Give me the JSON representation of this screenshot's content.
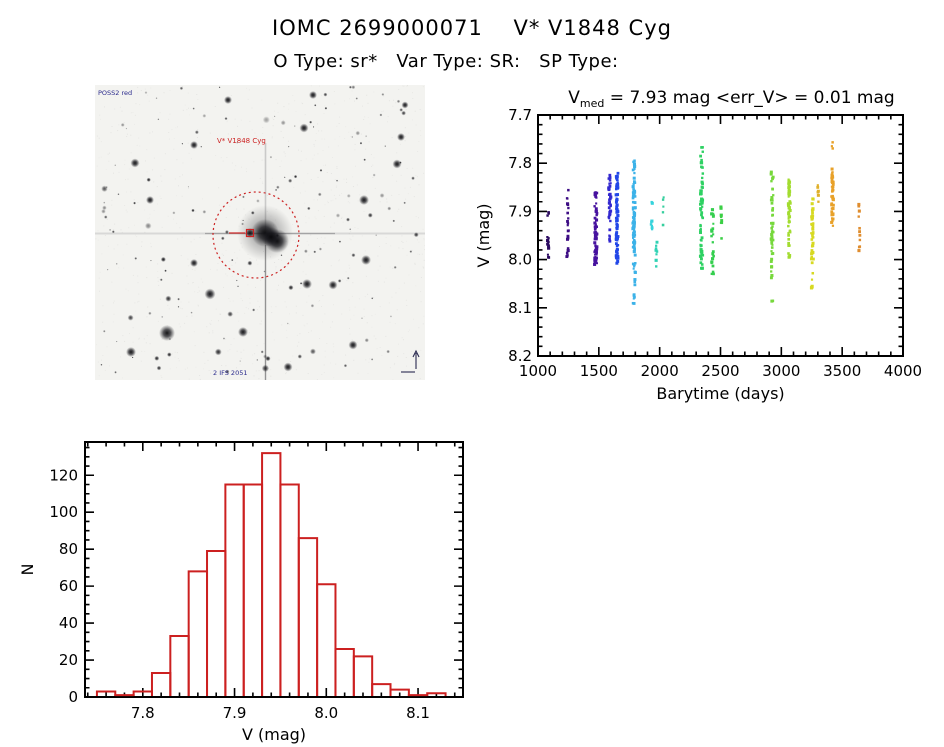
{
  "page": {
    "title": "IOMC 2699000071    V* V1848 Cyg",
    "subtitle": "O Type: sr*   Var Type: SR:   SP Type:",
    "background": "#ffffff",
    "text_color": "#000000"
  },
  "finder": {
    "survey_label": "POSS2 red",
    "target_label": "V* V1848 Cyg",
    "bottom_label": "2 IFS 2051",
    "marker_color": "#cc2222",
    "annotation_color": "#2a2a8c"
  },
  "chart_data": [
    {
      "id": "lightcurve",
      "type": "scatter",
      "title_parts": {
        "base": "V",
        "sub": "med",
        "rest": " = 7.93 mag <err_V> = 0.01 mag"
      },
      "xlabel": "Barytime (days)",
      "ylabel": "V (mag)",
      "xlim": [
        1000,
        4000
      ],
      "ylim": [
        7.7,
        8.2
      ],
      "y_inverted": true,
      "xticks": [
        1000,
        1500,
        2000,
        2500,
        3000,
        3500,
        4000
      ],
      "yticks": [
        7.7,
        7.8,
        7.9,
        8.0,
        8.1,
        8.2
      ],
      "x_minor_step": 100,
      "y_minor_step": 0.02,
      "xtick_decimals": 0,
      "ytick_decimals": 1,
      "clusters": [
        {
          "t": 1085,
          "t_spread": 8,
          "color": "#2b0a60",
          "segments": [
            [
              7.9,
              8.0,
              14
            ]
          ]
        },
        {
          "t": 1245,
          "t_spread": 8,
          "color": "#3d0d84",
          "segments": [
            [
              7.85,
              7.92,
              8
            ],
            [
              7.92,
              8.0,
              14
            ]
          ]
        },
        {
          "t": 1475,
          "t_spread": 10,
          "color": "#47129f",
          "segments": [
            [
              7.86,
              7.93,
              22
            ],
            [
              7.93,
              8.01,
              48
            ]
          ]
        },
        {
          "t": 1590,
          "t_spread": 8,
          "color": "#3328cf",
          "segments": [
            [
              7.82,
              7.9,
              28
            ],
            [
              7.9,
              7.97,
              14
            ]
          ]
        },
        {
          "t": 1650,
          "t_spread": 8,
          "color": "#2247e8",
          "segments": [
            [
              7.82,
              7.92,
              48
            ],
            [
              7.92,
              8.01,
              47
            ]
          ]
        },
        {
          "t": 1790,
          "t_spread": 10,
          "color": "#3cb2e8",
          "segments": [
            [
              7.78,
              7.85,
              16
            ],
            [
              7.85,
              7.95,
              48
            ],
            [
              7.95,
              8.03,
              22
            ],
            [
              8.03,
              8.11,
              9
            ]
          ]
        },
        {
          "t": 1935,
          "t_spread": 6,
          "color": "#36d3dc",
          "segments": [
            [
              7.88,
              7.95,
              9
            ]
          ]
        },
        {
          "t": 1975,
          "t_spread": 5,
          "color": "#2fd2b4",
          "segments": [
            [
              7.94,
              8.02,
              8
            ]
          ]
        },
        {
          "t": 2030,
          "t_spread": 5,
          "color": "#36cf9e",
          "segments": [
            [
              7.87,
              7.94,
              5
            ]
          ]
        },
        {
          "t": 2345,
          "t_spread": 10,
          "color": "#2ed163",
          "segments": [
            [
              7.76,
              7.84,
              12
            ],
            [
              7.84,
              7.92,
              28
            ],
            [
              7.92,
              8.03,
              25
            ]
          ]
        },
        {
          "t": 2435,
          "t_spread": 9,
          "color": "#35cf4f",
          "segments": [
            [
              7.88,
              7.96,
              12
            ],
            [
              7.96,
              8.03,
              12
            ]
          ]
        },
        {
          "t": 2505,
          "t_spread": 6,
          "color": "#3bcf45",
          "segments": [
            [
              7.89,
              7.96,
              8
            ]
          ]
        },
        {
          "t": 2925,
          "t_spread": 9,
          "color": "#77d83c",
          "segments": [
            [
              7.8,
              7.88,
              14
            ],
            [
              7.88,
              7.98,
              28
            ],
            [
              7.98,
              8.04,
              10
            ],
            [
              8.08,
              8.1,
              2
            ]
          ]
        },
        {
          "t": 3065,
          "t_spread": 8,
          "color": "#a3dc30",
          "segments": [
            [
              7.83,
              7.91,
              28
            ],
            [
              7.91,
              8.01,
              22
            ]
          ]
        },
        {
          "t": 3255,
          "t_spread": 9,
          "color": "#d7d922",
          "segments": [
            [
              7.87,
              7.95,
              32
            ],
            [
              7.95,
              8.06,
              26
            ]
          ]
        },
        {
          "t": 3300,
          "t_spread": 5,
          "color": "#e0b02a",
          "segments": [
            [
              7.84,
              7.89,
              6
            ]
          ]
        },
        {
          "t": 3420,
          "t_spread": 8,
          "color": "#e8a129",
          "segments": [
            [
              7.75,
              7.77,
              3
            ],
            [
              7.81,
              7.88,
              34
            ],
            [
              7.88,
              7.93,
              18
            ]
          ]
        },
        {
          "t": 3640,
          "t_spread": 6,
          "color": "#df8d2f",
          "segments": [
            [
              7.87,
              7.99,
              12
            ]
          ]
        }
      ]
    },
    {
      "id": "v_distribution",
      "type": "histogram",
      "color": "#cc2020",
      "xlabel": "V (mag)",
      "ylabel": "N",
      "bin_start": 7.75,
      "bin_width": 0.02,
      "counts": [
        3,
        1,
        3,
        13,
        33,
        68,
        79,
        115,
        115,
        132,
        115,
        86,
        61,
        26,
        22,
        7,
        4,
        1,
        2
      ],
      "xlim": [
        7.737,
        8.149
      ],
      "ylim": [
        0,
        138
      ],
      "xticks": [
        7.8,
        7.9,
        8.0,
        8.1
      ],
      "yticks": [
        0,
        20,
        40,
        60,
        80,
        100,
        120
      ],
      "x_minor_step": 0.02,
      "y_minor_step": 5,
      "xtick_decimals": 1,
      "ytick_decimals": 0
    }
  ]
}
